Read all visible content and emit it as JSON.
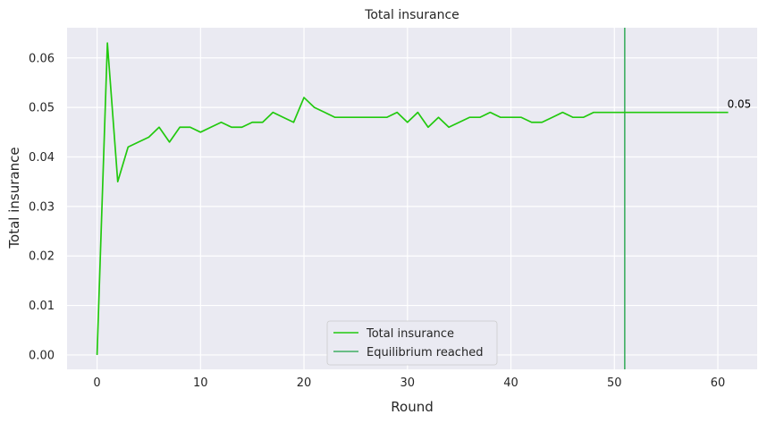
{
  "chart_data": {
    "type": "line",
    "title": "Total insurance",
    "xlabel": "Round",
    "ylabel": "Total insurance",
    "xlim": [
      -2.9,
      63.8
    ],
    "ylim": [
      -0.0029,
      0.0661
    ],
    "xticks": [
      0,
      10,
      20,
      30,
      40,
      50,
      60
    ],
    "xtick_labels": [
      "0",
      "10",
      "20",
      "30",
      "40",
      "50",
      "60"
    ],
    "yticks": [
      0.0,
      0.01,
      0.02,
      0.03,
      0.04,
      0.05,
      0.06
    ],
    "ytick_labels": [
      "0.00",
      "0.01",
      "0.02",
      "0.03",
      "0.04",
      "0.05",
      "0.06"
    ],
    "grid": true,
    "legend_position": "bottom-center",
    "series": [
      {
        "name": "Total insurance",
        "color": "#22c90f",
        "x": [
          0,
          1,
          2,
          3,
          4,
          5,
          6,
          7,
          8,
          9,
          10,
          11,
          12,
          13,
          14,
          15,
          16,
          17,
          18,
          19,
          20,
          21,
          22,
          23,
          24,
          25,
          26,
          27,
          28,
          29,
          30,
          31,
          32,
          33,
          34,
          35,
          36,
          37,
          38,
          39,
          40,
          41,
          42,
          43,
          44,
          45,
          46,
          47,
          48,
          49,
          50,
          51,
          52,
          53,
          54,
          55,
          56,
          57,
          58,
          59,
          60,
          61
        ],
        "y": [
          0.0,
          0.063,
          0.035,
          0.042,
          0.043,
          0.044,
          0.046,
          0.043,
          0.046,
          0.046,
          0.045,
          0.046,
          0.047,
          0.046,
          0.046,
          0.047,
          0.047,
          0.049,
          0.048,
          0.047,
          0.052,
          0.05,
          0.049,
          0.048,
          0.048,
          0.048,
          0.048,
          0.048,
          0.048,
          0.049,
          0.047,
          0.049,
          0.046,
          0.048,
          0.046,
          0.047,
          0.048,
          0.048,
          0.049,
          0.048,
          0.048,
          0.048,
          0.047,
          0.047,
          0.048,
          0.049,
          0.048,
          0.048,
          0.049,
          0.049,
          0.049,
          0.049,
          0.049,
          0.049,
          0.049,
          0.049,
          0.049,
          0.049,
          0.049,
          0.049,
          0.049,
          0.049
        ]
      }
    ],
    "vlines": [
      {
        "name": "Equilibrium reached",
        "x": 51,
        "color": "#3fae62"
      }
    ],
    "annotations": [
      {
        "text": "0.05",
        "x": 61,
        "y": 0.049
      }
    ]
  }
}
